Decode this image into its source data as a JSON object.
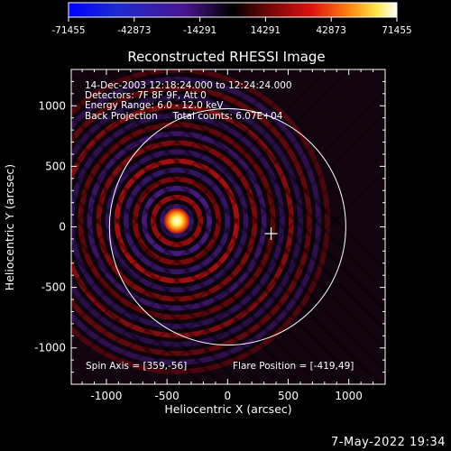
{
  "chart_data": {
    "type": "heatmap",
    "title": "Reconstructed RHESSI Image",
    "xlabel": "Heliocentric X (arcsec)",
    "ylabel": "Heliocentric Y (arcsec)",
    "xlim": [
      -1290,
      1300
    ],
    "ylim": [
      -1300,
      1300
    ],
    "xticks": [
      -1000,
      -500,
      0,
      500,
      1000
    ],
    "yticks": [
      -1000,
      -500,
      0,
      500,
      1000
    ],
    "colorbar": {
      "range": [
        -71455,
        71455
      ],
      "ticks": [
        -71455,
        -42873,
        -14291,
        14291,
        42873,
        71455
      ]
    },
    "info_lines": [
      "14-Dec-2003 12:18:24.000 to 12:24:24.000",
      "Detectors: 7F 8F 9F, Att 0",
      "Energy Range: 6.0 - 12.0 keV",
      "Back Projection     Total counts: 6.07E+04"
    ],
    "spin_axis_label": "Spin Axis = [359,-56]",
    "flare_position_label": "Flare Position = [-419,49]",
    "flare_position": [
      -419,
      49
    ],
    "spin_axis": [
      359,
      -56
    ],
    "solar_limb_radius": 975
  },
  "footer_timestamp": "7-May-2022 19:34"
}
